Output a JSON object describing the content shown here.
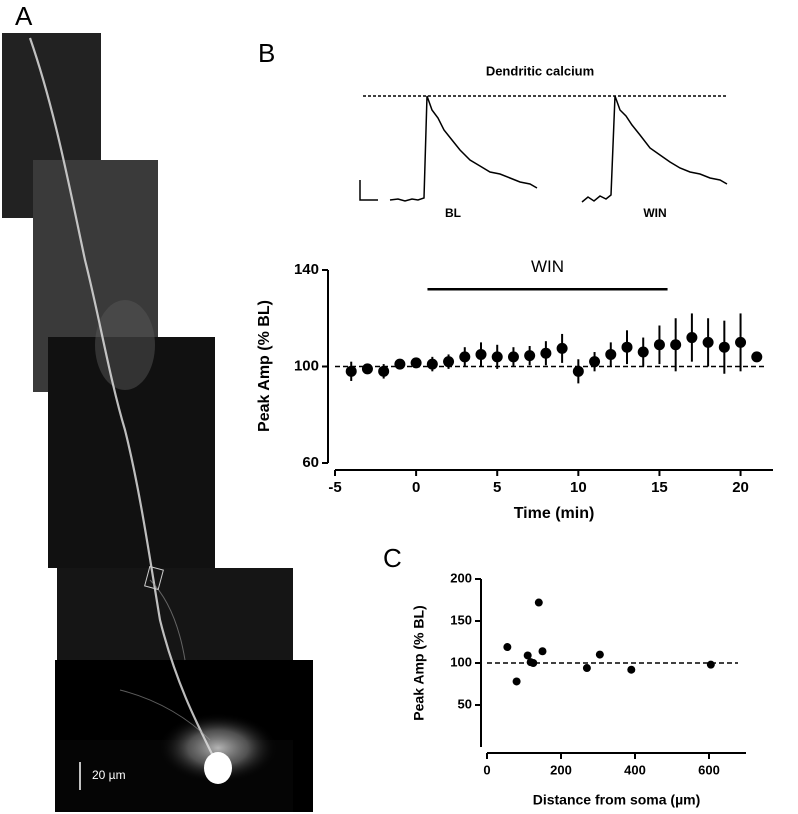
{
  "panel_labels": [
    "A",
    "B",
    "C"
  ],
  "image": {
    "scale_bar_label": "20 µm"
  },
  "traces": {
    "title": "Dendritic calcium",
    "labels": [
      "BL",
      "WIN"
    ]
  },
  "chart_data": [
    {
      "type": "errorbar",
      "y_label": "Peak Amp (% BL)",
      "x_label": "Time (min)",
      "x": [
        -4,
        -3,
        -2,
        -1,
        0,
        1,
        2,
        3,
        4,
        5,
        6,
        7,
        8,
        9,
        10,
        11,
        12,
        13,
        14,
        15,
        16,
        17,
        18,
        19,
        20,
        21
      ],
      "values": [
        98,
        99,
        98,
        101,
        101.5,
        101,
        102,
        104,
        105,
        104,
        104,
        104.5,
        105.5,
        107.5,
        98,
        102,
        105,
        108,
        106,
        109,
        109,
        112,
        110,
        108,
        110,
        104
      ],
      "errors": [
        4,
        2,
        3,
        2,
        2,
        3,
        3,
        4,
        5,
        5,
        4,
        4,
        5,
        6,
        5,
        4,
        5,
        7,
        6,
        8,
        11,
        10,
        10,
        11,
        12,
        1
      ],
      "color": "#000000",
      "xlim": [
        -5,
        22
      ],
      "ylim": [
        60,
        140
      ],
      "xticks": [
        -5,
        0,
        5,
        10,
        15,
        20
      ],
      "yticks": [
        60,
        100,
        140
      ],
      "reference_line": 100,
      "annotation": {
        "label": "WIN",
        "x": [
          0.7,
          15.5
        ],
        "y": 132
      }
    },
    {
      "type": "scatter",
      "y_label": "Peak Amp (% BL)",
      "x_label": "Distance from soma (µm)",
      "x": [
        55,
        80,
        110,
        118,
        125,
        140,
        150,
        270,
        305,
        390,
        605
      ],
      "values": [
        119,
        78,
        109,
        101,
        100,
        172,
        114,
        94,
        110,
        92,
        98
      ],
      "color": "#000000",
      "xlim": [
        0,
        700
      ],
      "ylim": [
        0,
        200
      ],
      "xticks": [
        0,
        200,
        400,
        600
      ],
      "yticks": [
        50,
        100,
        150,
        200
      ],
      "reference_line": 100
    }
  ]
}
